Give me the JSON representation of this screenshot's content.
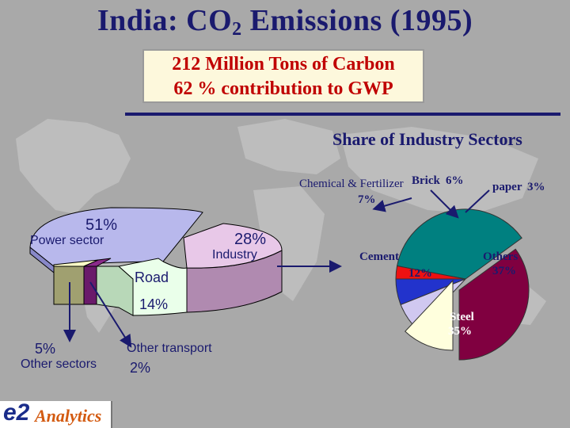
{
  "slide": {
    "title_main": "India: CO",
    "title_sub": "2",
    "title_rest": " Emissions (1995)",
    "callout_line1": "212 Million Tons of Carbon",
    "callout_line2": "62 % contribution to GWP",
    "subtitle": "Share of Industry Sectors"
  },
  "logo": {
    "e2": "e2",
    "analytics": "Analytics"
  },
  "colors": {
    "navy": "#1a1a6e",
    "red": "#c00000",
    "power": "#b8b8ec",
    "industry": "#e8c8e8",
    "road": "#eaffea",
    "other_sectors": "#ffffc8",
    "other_transport": "#8a2a8a",
    "steel": "#800040",
    "others": "#008080",
    "cement": "#ffffdd",
    "chemical": "#d0c8f0",
    "brick": "#2233cc",
    "paper": "#ee1111"
  },
  "chart_data": [
    {
      "type": "pie",
      "slices": [
        {
          "key": "power",
          "label": "Power sector",
          "value_label": "51%",
          "value": 51
        },
        {
          "key": "industry",
          "label": "Industry",
          "value_label": "28%",
          "value": 28
        },
        {
          "key": "road",
          "label": "Road",
          "value_label": "14%",
          "value": 14
        },
        {
          "key": "other_sectors",
          "label": "Other sectors",
          "value_label": "5%",
          "value": 5
        },
        {
          "key": "other_transport",
          "label": "Other transport",
          "value_label": "2%",
          "value": 2
        }
      ]
    },
    {
      "type": "pie",
      "title": "Share of Industry Sectors",
      "slices": [
        {
          "key": "steel",
          "label": "Steel",
          "value_label": "35%",
          "value": 35
        },
        {
          "key": "others",
          "label": "Others",
          "value_label": "37%",
          "value": 37
        },
        {
          "key": "paper",
          "label": "paper",
          "value_label": "3%",
          "value": 3
        },
        {
          "key": "brick",
          "label": "Brick",
          "value_label": "6%",
          "value": 6
        },
        {
          "key": "chemical",
          "label": "Chemical & Fertilizer",
          "value_label": "7%",
          "value": 7
        },
        {
          "key": "cement",
          "label": "Cement",
          "value_label": "12%",
          "value": 12
        }
      ]
    }
  ]
}
